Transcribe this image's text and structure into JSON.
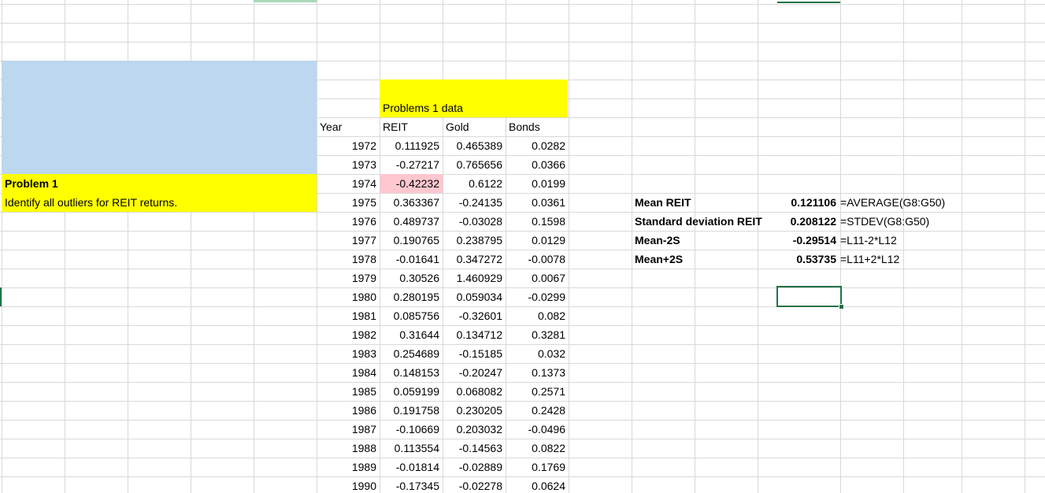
{
  "colors": {
    "gridline": "#d9d9d9",
    "blue_fill": "#bdd7ee",
    "yellow_fill": "#ffff00",
    "outlier_fill": "#ffc7ce",
    "selection": "#217346"
  },
  "problem": {
    "title": "Problem 1",
    "description": "Identify all outliers for REIT returns."
  },
  "data_table": {
    "caption": "Problems 1  data",
    "headers": [
      "Year",
      "REIT",
      "Gold",
      "Bonds"
    ],
    "rows": [
      [
        "1972",
        "0.111925",
        "0.465389",
        "0.0282"
      ],
      [
        "1973",
        "-0.27217",
        "0.765656",
        "0.0366"
      ],
      [
        "1974",
        "-0.42232",
        "0.6122",
        "0.0199"
      ],
      [
        "1975",
        "0.363367",
        "-0.24135",
        "0.0361"
      ],
      [
        "1976",
        "0.489737",
        "-0.03028",
        "0.1598"
      ],
      [
        "1977",
        "0.190765",
        "0.238795",
        "0.0129"
      ],
      [
        "1978",
        "-0.01641",
        "0.347272",
        "-0.0078"
      ],
      [
        "1979",
        "0.30526",
        "1.460929",
        "0.0067"
      ],
      [
        "1980",
        "0.280195",
        "0.059034",
        "-0.0299"
      ],
      [
        "1981",
        "0.085756",
        "-0.32601",
        "0.082"
      ],
      [
        "1982",
        "0.31644",
        "0.134712",
        "0.3281"
      ],
      [
        "1983",
        "0.254689",
        "-0.15185",
        "0.032"
      ],
      [
        "1984",
        "0.148153",
        "-0.20247",
        "0.1373"
      ],
      [
        "1985",
        "0.059199",
        "0.068082",
        "0.2571"
      ],
      [
        "1986",
        "0.191758",
        "0.230205",
        "0.2428"
      ],
      [
        "1987",
        "-0.10669",
        "0.203032",
        "-0.0496"
      ],
      [
        "1988",
        "0.113554",
        "-0.14563",
        "0.0822"
      ],
      [
        "1989",
        "-0.01814",
        "-0.02889",
        "0.1769"
      ],
      [
        "1990",
        "-0.17345",
        "-0.02278",
        "0.0624"
      ]
    ]
  },
  "stats": [
    {
      "label": "Mean REIT",
      "value": "0.121106",
      "formula": "=AVERAGE(G8:G50)"
    },
    {
      "label": "Standard deviation REIT",
      "value": "0.208122",
      "formula": "=STDEV(G8:G50)"
    },
    {
      "label": "Mean-2S",
      "value": "-0.29514",
      "formula": "=L11-2*L12"
    },
    {
      "label": "Mean+2S",
      "value": "0.53735",
      "formula": "=L11+2*L12"
    }
  ]
}
